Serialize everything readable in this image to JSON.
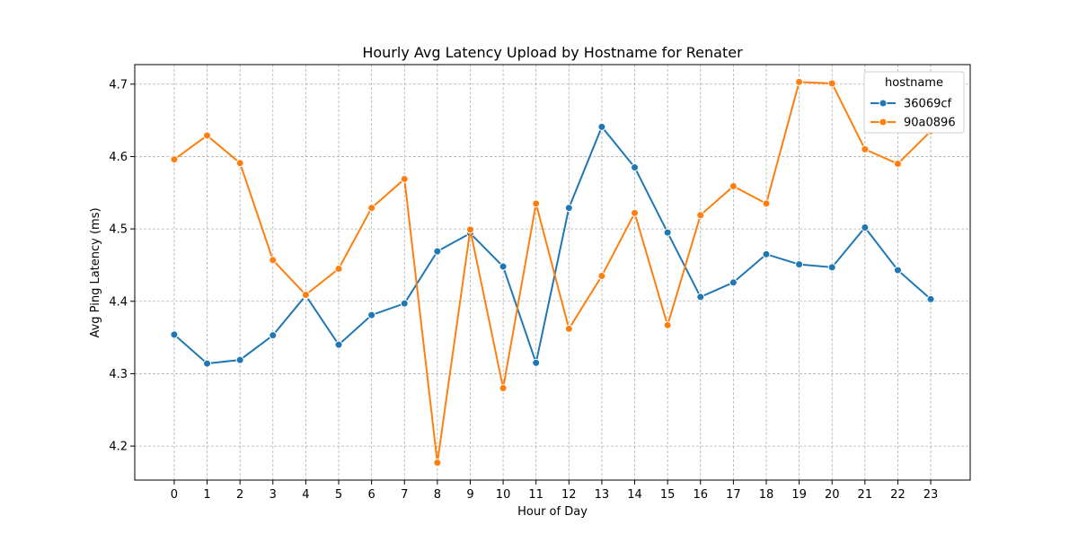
{
  "chart_data": {
    "type": "line",
    "title": "Hourly Avg Latency Upload by Hostname for Renater",
    "xlabel": "Hour of Day",
    "ylabel": "Avg Ping Latency (ms)",
    "x": [
      0,
      1,
      2,
      3,
      4,
      5,
      6,
      7,
      8,
      9,
      10,
      11,
      12,
      13,
      14,
      15,
      16,
      17,
      18,
      19,
      20,
      21,
      22,
      23
    ],
    "xlim": [
      -1.2,
      24.2
    ],
    "ylim": [
      4.153,
      4.727
    ],
    "yticks": [
      4.2,
      4.3,
      4.4,
      4.5,
      4.6,
      4.7
    ],
    "grid": true,
    "legend": {
      "title": "hostname",
      "placement": "top-right"
    },
    "series": [
      {
        "name": "36069cf",
        "color": "#1f77b4",
        "values": [
          4.354,
          4.314,
          4.319,
          4.353,
          4.408,
          4.34,
          4.381,
          4.397,
          4.469,
          4.494,
          4.448,
          4.315,
          4.529,
          4.641,
          4.585,
          4.495,
          4.406,
          4.426,
          4.465,
          4.451,
          4.447,
          4.502,
          4.443,
          4.403
        ]
      },
      {
        "name": "90a0896",
        "color": "#ff7f0e",
        "values": [
          4.596,
          4.629,
          4.591,
          4.457,
          4.409,
          4.445,
          4.529,
          4.569,
          4.177,
          4.499,
          4.28,
          4.535,
          4.362,
          4.435,
          4.522,
          4.367,
          4.519,
          4.559,
          4.535,
          4.703,
          4.701,
          4.61,
          4.59,
          4.635
        ]
      }
    ]
  }
}
